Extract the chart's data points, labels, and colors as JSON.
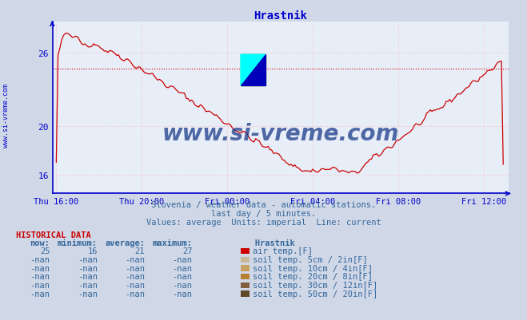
{
  "title": "Hrastnik",
  "title_color": "#0000cc",
  "bg_color": "#d0d8e8",
  "plot_bg_color": "#e8eef8",
  "grid_color": "#ffaaaa",
  "axis_color": "#0000cc",
  "line_color": "#cc0000",
  "avg_line_color": "#cc0000",
  "ylabel_text": "www.si-vreme.com",
  "watermark_text": "www.si-vreme.com",
  "watermark_color": "#1a3a8a",
  "subtitle1": "Slovenia / weather data - automatic stations.",
  "subtitle2": "last day / 5 minutes.",
  "subtitle3": "Values: average  Units: imperial  Line: current",
  "subtitle_color": "#336699",
  "x_tick_labels": [
    "Thu 16:00",
    "Thu 20:00",
    "Fri 00:00",
    "Fri 04:00",
    "Fri 08:00",
    "Fri 12:00"
  ],
  "x_tick_positions": [
    0,
    48,
    96,
    144,
    192,
    240
  ],
  "y_ticks": [
    16,
    20,
    26
  ],
  "ylim": [
    14.5,
    28.5
  ],
  "xlim": [
    -2,
    254
  ],
  "avg_line_y": 24.7,
  "hist_label": "HISTORICAL DATA",
  "hist_color": "#cc0000",
  "table_header_color": "#336699",
  "table_data_color": "#336699",
  "rows": [
    {
      "now": "25",
      "min": "16",
      "avg": "21",
      "max": "27",
      "color": "#cc0000",
      "label": "air temp.[F]"
    },
    {
      "now": "-nan",
      "min": "-nan",
      "avg": "-nan",
      "max": "-nan",
      "color": "#c8b89a",
      "label": "soil temp. 5cm / 2in[F]"
    },
    {
      "now": "-nan",
      "min": "-nan",
      "avg": "-nan",
      "max": "-nan",
      "color": "#c8a060",
      "label": "soil temp. 10cm / 4in[F]"
    },
    {
      "now": "-nan",
      "min": "-nan",
      "avg": "-nan",
      "max": "-nan",
      "color": "#b88030",
      "label": "soil temp. 20cm / 8in[F]"
    },
    {
      "now": "-nan",
      "min": "-nan",
      "avg": "-nan",
      "max": "-nan",
      "color": "#806040",
      "label": "soil temp. 30cm / 12in[F]"
    },
    {
      "now": "-nan",
      "min": "-nan",
      "avg": "-nan",
      "max": "-nan",
      "color": "#604828",
      "label": "soil temp. 50cm / 20in[F]"
    }
  ]
}
